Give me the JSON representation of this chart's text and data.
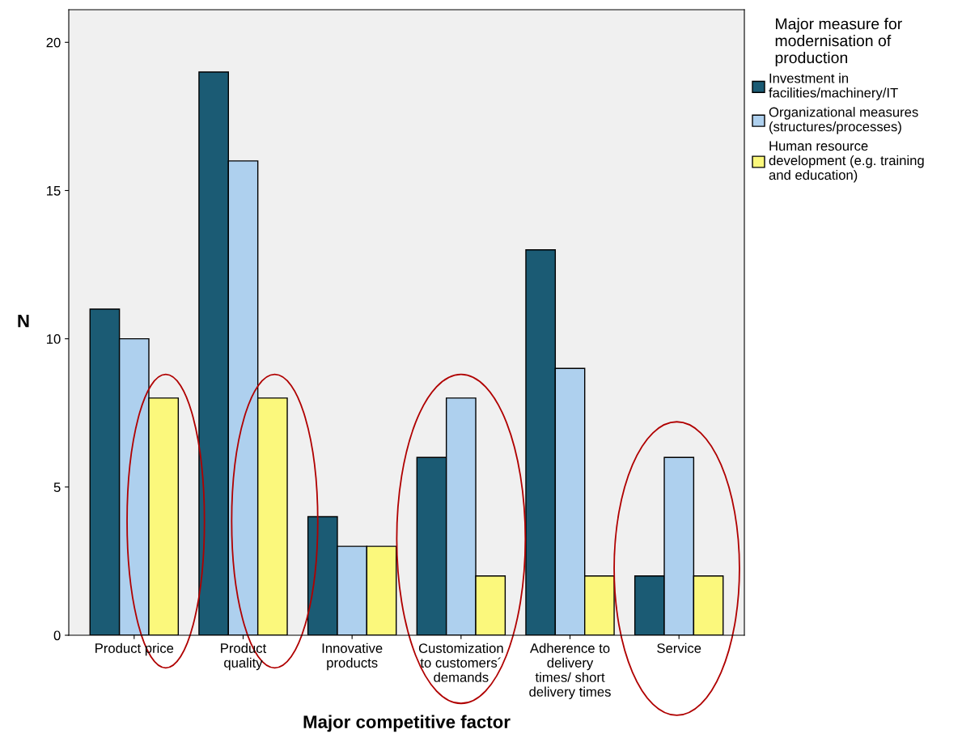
{
  "chart_data": {
    "type": "bar",
    "xlabel": "Major competitive factor",
    "ylabel": "N",
    "legend_title": "Major measure for\nmodernisation of\nproduction",
    "categories": [
      "Product price",
      "Product\nquality",
      "Innovative\nproducts",
      "Customization\nto customers´\ndemands",
      "Adherence to\ndelivery\ntimes/ short\ndelivery times",
      "Service"
    ],
    "series": [
      {
        "name": "Investment in\nfacilities/machinery/IT",
        "color": "#1b5b74",
        "values": [
          11,
          19,
          4,
          6,
          13,
          2
        ]
      },
      {
        "name": "Organizational measures\n(structures/processes)",
        "color": "#aed0ee",
        "values": [
          10,
          16,
          3,
          8,
          9,
          6
        ]
      },
      {
        "name": "Human resource\ndevelopment (e.g. training\nand education)",
        "color": "#fbf87c",
        "values": [
          8,
          8,
          3,
          2,
          2,
          2
        ]
      }
    ],
    "ylim": [
      0,
      21.1
    ],
    "yticks": [
      0,
      5,
      10,
      15,
      20
    ],
    "grid": false,
    "legend": "right"
  }
}
